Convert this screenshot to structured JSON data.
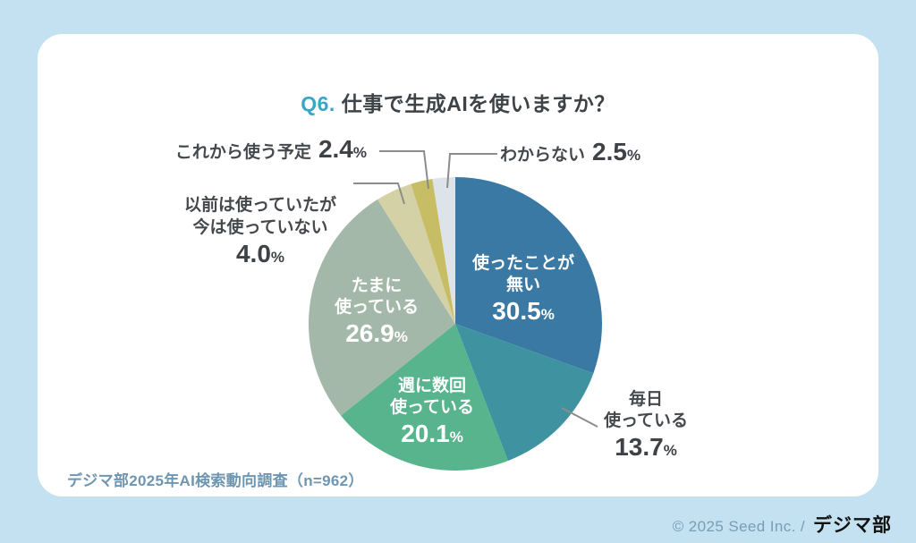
{
  "page": {
    "background_color": "#c4e1f2",
    "card_color": "#ffffff"
  },
  "title": {
    "prefix": "Q6.",
    "main": "仕事で生成AIを使いますか？",
    "prefix_color": "#39a6c7"
  },
  "chart_data": {
    "type": "pie",
    "title": "Q6. 仕事で生成AIを使いますか？",
    "start_angle_deg": 0,
    "direction": "clockwise",
    "sample_size": 962,
    "slices": [
      {
        "label": "使ったことが無い",
        "lines": [
          "使ったことが",
          "無い"
        ],
        "value": 30.5,
        "value_text": "30.5",
        "unit": "%",
        "color": "#3a79a4",
        "label_position": "inside"
      },
      {
        "label": "毎日使っている",
        "lines": [
          "毎日",
          "使っている"
        ],
        "value": 13.7,
        "value_text": "13.7",
        "unit": "%",
        "color": "#3f93a0",
        "label_position": "outside"
      },
      {
        "label": "週に数回使っている",
        "lines": [
          "週に数回",
          "使っている"
        ],
        "value": 20.1,
        "value_text": "20.1",
        "unit": "%",
        "color": "#57b48c",
        "label_position": "inside"
      },
      {
        "label": "たまに使っている",
        "lines": [
          "たまに",
          "使っている"
        ],
        "value": 26.9,
        "value_text": "26.9",
        "unit": "%",
        "color": "#a4b8a9",
        "label_position": "inside"
      },
      {
        "label": "以前は使っていたが今は使っていない",
        "lines": [
          "以前は使っていたが",
          "今は使っていない"
        ],
        "value": 4.0,
        "value_text": "4.0",
        "unit": "%",
        "color": "#d3d1a5",
        "label_position": "outside"
      },
      {
        "label": "これから使う予定",
        "lines": [
          "これから使う予定"
        ],
        "value": 2.4,
        "value_text": "2.4",
        "unit": "%",
        "color": "#c7bd64",
        "label_position": "outside"
      },
      {
        "label": "わからない",
        "lines": [
          "わからない"
        ],
        "value": 2.5,
        "value_text": "2.5",
        "unit": "%",
        "color": "#dde4e9",
        "label_position": "outside"
      }
    ],
    "leader_line_color": "#8c8c8c"
  },
  "source": {
    "text": "デジマ部2025年AI検索動向調査（n=962）"
  },
  "footer": {
    "copyright": "© 2025 Seed Inc. /",
    "logo": "デジマ部"
  }
}
